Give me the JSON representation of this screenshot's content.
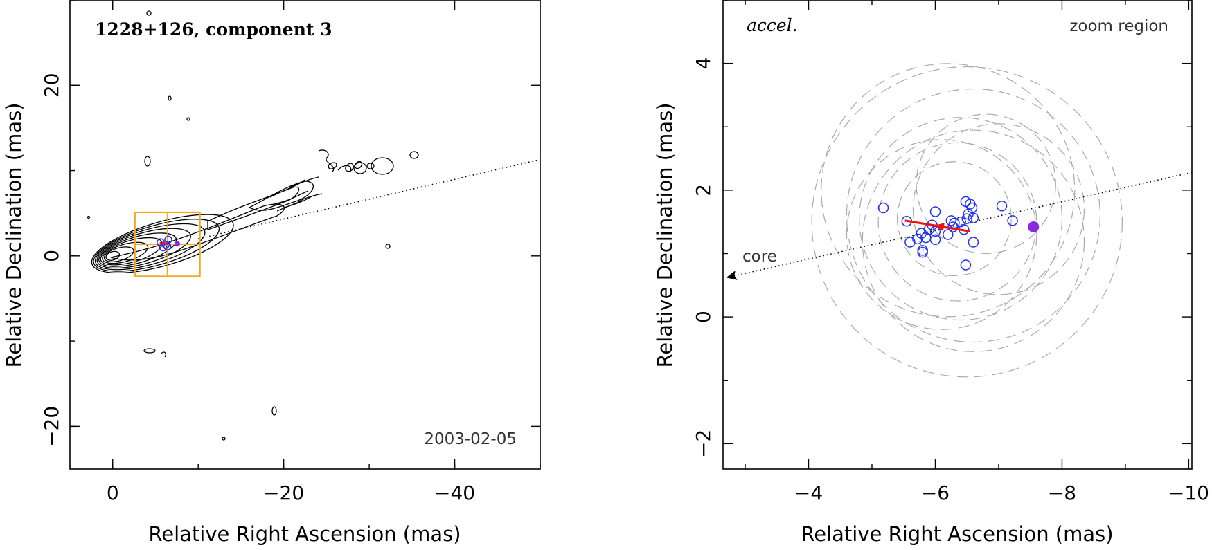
{
  "chart_data": [
    {
      "type": "scatter",
      "panel": "left",
      "title": "1228+126, component 3",
      "date_label": "2003-02-05",
      "xlabel": "Relative Right Ascension (mas)",
      "ylabel": "Relative Declination (mas)",
      "xlim": [
        5,
        -50
      ],
      "ylim": [
        -25,
        30
      ],
      "xticks": [
        0,
        -20,
        -40
      ],
      "yticks": [
        -20,
        0,
        20
      ],
      "xtick_labels": [
        "0",
        "−20",
        "−40"
      ],
      "ytick_labels": [
        "−20",
        "0",
        "20"
      ],
      "zoom_box": {
        "x": [
          -2.6,
          -10.2
        ],
        "y": [
          -2.4,
          5.1
        ],
        "color": "#f5a623"
      },
      "jet_axis_line": {
        "x": [
          -10,
          -50
        ],
        "y": [
          2.0,
          11.3
        ]
      },
      "component_points": [
        [
          -5.6,
          1.6
        ],
        [
          -6.2,
          1.3
        ],
        [
          -6.5,
          1.9
        ],
        [
          -5.9,
          1.0
        ],
        [
          -6.4,
          1.1
        ]
      ],
      "red_vector": {
        "from": [
          -6.5,
          1.4
        ],
        "to": [
          -5.5,
          1.5
        ],
        "color": "#ee1111"
      },
      "colors": {
        "points": "#2233ee",
        "highlight": "#8a2be2"
      }
    },
    {
      "type": "scatter",
      "panel": "right",
      "label": "accel.",
      "region_label": "zoom region",
      "core_label": "core",
      "xlabel": "Relative Right Ascension (mas)",
      "ylabel": "Relative Declination (mas)",
      "xlim": [
        -2.65,
        -10.05
      ],
      "ylim": [
        -2.4,
        5.0
      ],
      "xticks": [
        -4,
        -6,
        -8,
        -10
      ],
      "yticks": [
        -2,
        0,
        2,
        4
      ],
      "xtick_labels": [
        "−4",
        "−6",
        "−8",
        "−10"
      ],
      "ytick_labels": [
        "−2",
        "0",
        "2",
        "4"
      ],
      "points": [
        [
          -5.18,
          1.72
        ],
        [
          -5.55,
          1.51
        ],
        [
          -5.6,
          1.18
        ],
        [
          -5.72,
          1.23
        ],
        [
          -5.78,
          1.32
        ],
        [
          -5.8,
          1.05
        ],
        [
          -5.8,
          1.02
        ],
        [
          -5.85,
          1.25
        ],
        [
          -5.9,
          1.38
        ],
        [
          -5.95,
          1.45
        ],
        [
          -6.0,
          1.66
        ],
        [
          -6.0,
          1.22
        ],
        [
          -6.0,
          1.35
        ],
        [
          -6.2,
          1.3
        ],
        [
          -6.25,
          1.52
        ],
        [
          -6.28,
          1.42
        ],
        [
          -6.3,
          1.48
        ],
        [
          -6.4,
          1.5
        ],
        [
          -6.45,
          1.38
        ],
        [
          -6.48,
          1.82
        ],
        [
          -6.5,
          1.55
        ],
        [
          -6.52,
          1.62
        ],
        [
          -6.55,
          1.78
        ],
        [
          -6.58,
          1.72
        ],
        [
          -6.6,
          1.18
        ],
        [
          -6.48,
          0.82
        ],
        [
          -7.05,
          1.75
        ],
        [
          -7.22,
          1.52
        ],
        [
          -6.6,
          1.56
        ]
      ],
      "highlight_point": [
        -7.55,
        1.42
      ],
      "uncertainty_circles": [
        {
          "cx": -6.3,
          "cy": 1.55,
          "r": 0.9
        },
        {
          "cx": -6.35,
          "cy": 1.5,
          "r": 1.25
        },
        {
          "cx": -6.4,
          "cy": 1.55,
          "r": 1.6
        },
        {
          "cx": -6.6,
          "cy": 1.6,
          "r": 2.0
        },
        {
          "cx": -6.5,
          "cy": 1.5,
          "r": 2.45
        },
        {
          "cx": -6.2,
          "cy": 2.0,
          "r": 2.0
        },
        {
          "cx": -6.6,
          "cy": 1.2,
          "r": 1.75
        },
        {
          "cx": -7.0,
          "cy": 1.7,
          "r": 1.35
        },
        {
          "cx": -6.1,
          "cy": 1.3,
          "r": 1.5
        },
        {
          "cx": -6.8,
          "cy": 2.1,
          "r": 1.1
        }
      ],
      "red_vector": {
        "from": [
          -6.55,
          1.35
        ],
        "to": [
          -5.52,
          1.52
        ],
        "color": "#ee1111"
      },
      "jet_axis_line": {
        "x": [
          -10.05,
          -2.7
        ],
        "y": [
          2.28,
          0.62
        ]
      },
      "colors": {
        "points": "#2233ee",
        "highlight": "#8a2be2",
        "circles": "#aaaaaa"
      }
    }
  ]
}
